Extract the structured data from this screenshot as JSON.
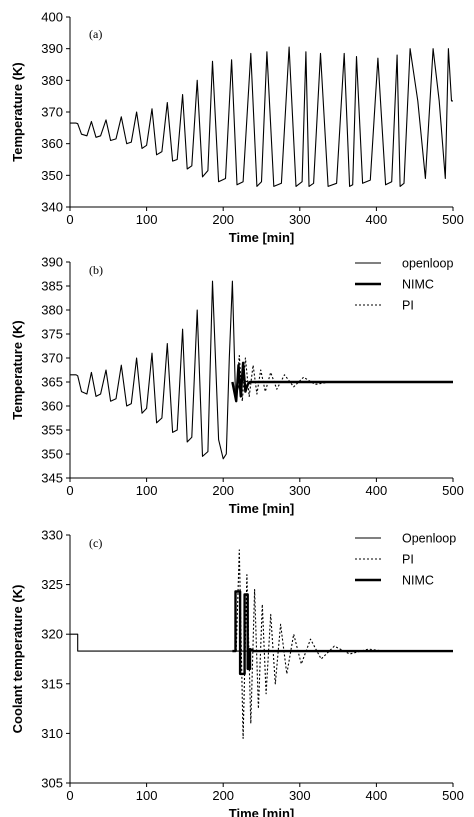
{
  "chart_data": [
    {
      "type": "line",
      "panel_label": "(a)",
      "xlabel": "Time [min]",
      "ylabel": "Temperature (K)",
      "xlim": [
        0,
        500
      ],
      "ylim": [
        340,
        400
      ],
      "xticks": [
        0,
        100,
        200,
        300,
        400,
        500
      ],
      "yticks": [
        340,
        350,
        360,
        370,
        380,
        390,
        400
      ],
      "series": [
        {
          "style": "solid-thin",
          "x": [
            0,
            8,
            10,
            15,
            22,
            28,
            34,
            40,
            47,
            53,
            60,
            67,
            74,
            80,
            87,
            94,
            100,
            107,
            113,
            120,
            127,
            134,
            140,
            147,
            153,
            159,
            166,
            173,
            180,
            186,
            194,
            203,
            211,
            218,
            226,
            236,
            244,
            250,
            257,
            266,
            276,
            286,
            295,
            303,
            308,
            312,
            318,
            327,
            337,
            348,
            358,
            365,
            369,
            374,
            382,
            392,
            402,
            412,
            420,
            427,
            431,
            436,
            444,
            454,
            464,
            474,
            482,
            490,
            494,
            498,
            500
          ],
          "y": [
            366.5,
            366.5,
            366.3,
            363,
            362.5,
            367,
            362,
            362.5,
            367.5,
            361,
            361.5,
            368.5,
            360,
            360.5,
            370,
            358.5,
            359.5,
            371,
            356.5,
            357.5,
            373,
            354.5,
            355,
            375.5,
            352,
            353,
            380,
            349.5,
            351.5,
            386,
            348,
            349,
            386.5,
            347,
            348,
            388.5,
            346.5,
            348,
            389,
            346.5,
            347.5,
            390.5,
            346.5,
            348,
            389,
            346.5,
            347.5,
            388.5,
            346.5,
            347.5,
            388.5,
            346.5,
            347,
            387.5,
            347.5,
            348.5,
            387,
            347,
            348,
            388,
            346.5,
            347.5,
            390,
            373.5,
            349,
            390,
            373.5,
            349,
            390,
            373.5,
            373.5
          ]
        }
      ]
    },
    {
      "type": "line",
      "panel_label": "(b)",
      "xlabel": "Time [min]",
      "ylabel": "Temperature (K)",
      "xlim": [
        0,
        500
      ],
      "ylim": [
        345,
        390
      ],
      "xticks": [
        0,
        100,
        200,
        300,
        400,
        500
      ],
      "yticks": [
        345,
        350,
        355,
        360,
        365,
        370,
        375,
        380,
        385,
        390
      ],
      "legend_position": "top-right",
      "series": [
        {
          "name": "openloop",
          "style": "solid-thin",
          "x": [
            0,
            8,
            10,
            15,
            22,
            28,
            34,
            40,
            47,
            53,
            60,
            67,
            74,
            80,
            87,
            94,
            100,
            107,
            113,
            120,
            127,
            134,
            140,
            147,
            153,
            159,
            166,
            173,
            180,
            186,
            194,
            200,
            204,
            208,
            212,
            216,
            220,
            225,
            232,
            240,
            260,
            300,
            500
          ],
          "y": [
            366.5,
            366.5,
            366.3,
            363,
            362.5,
            367,
            362,
            362.5,
            367.5,
            361,
            361.5,
            368.5,
            360,
            360.5,
            370,
            358.5,
            359.5,
            371,
            356.5,
            357.5,
            373,
            354.5,
            355,
            376,
            352.5,
            353.5,
            380,
            349.5,
            350.5,
            386,
            353,
            349,
            350,
            370,
            386,
            362,
            364,
            365.5,
            365,
            365,
            365,
            365,
            365
          ]
        },
        {
          "name": "NIMC",
          "style": "solid-thick",
          "x": [
            212,
            217,
            220,
            223,
            226,
            229,
            232,
            235,
            240,
            260,
            500
          ],
          "y": [
            365,
            361,
            368.5,
            362,
            369,
            363,
            364.5,
            365,
            365,
            365,
            365
          ]
        },
        {
          "name": "PI",
          "style": "dotted",
          "x": [
            212,
            217,
            221,
            225,
            229,
            234,
            239,
            244,
            249,
            255,
            262,
            270,
            280,
            292,
            305,
            320,
            340,
            500
          ],
          "y": [
            365,
            361.5,
            370.5,
            361,
            370,
            362,
            368.5,
            362.5,
            367.5,
            363,
            367,
            363.5,
            366.5,
            364,
            366,
            364.5,
            365,
            365
          ]
        }
      ]
    },
    {
      "type": "line",
      "panel_label": "(c)",
      "xlabel": "Time [min]",
      "ylabel": "Coolant temperature (K)",
      "xlim": [
        0,
        500
      ],
      "ylim": [
        305,
        330
      ],
      "xticks": [
        0,
        100,
        200,
        300,
        400,
        500
      ],
      "yticks": [
        305,
        310,
        315,
        320,
        325,
        330
      ],
      "legend_position": "top-right",
      "series": [
        {
          "name": "Openloop",
          "style": "solid-thin",
          "x": [
            0,
            10,
            10,
            500
          ],
          "y": [
            320,
            320,
            318.3,
            318.3
          ]
        },
        {
          "name": "PI",
          "style": "dotted",
          "x": [
            212,
            217,
            221,
            226,
            231,
            236,
            241,
            246,
            251,
            256,
            262,
            268,
            275,
            283,
            292,
            302,
            314,
            328,
            345,
            365,
            390,
            410,
            500
          ],
          "y": [
            318.3,
            318.3,
            328.5,
            309.5,
            326,
            311,
            324.5,
            312.5,
            323,
            314,
            322,
            315,
            321,
            316,
            320,
            317,
            319.5,
            317.5,
            318.8,
            318,
            318.5,
            318.3,
            318.3
          ]
        },
        {
          "name": "NIMC",
          "style": "solid-thick",
          "x": [
            212,
            216,
            216,
            222,
            222,
            228,
            228,
            232,
            232,
            235,
            235,
            240,
            260,
            500
          ],
          "y": [
            318.3,
            318.3,
            324.3,
            324.3,
            316,
            316,
            324,
            324,
            316.5,
            316.5,
            318.5,
            318.3,
            318.3,
            318.3
          ]
        }
      ]
    }
  ]
}
